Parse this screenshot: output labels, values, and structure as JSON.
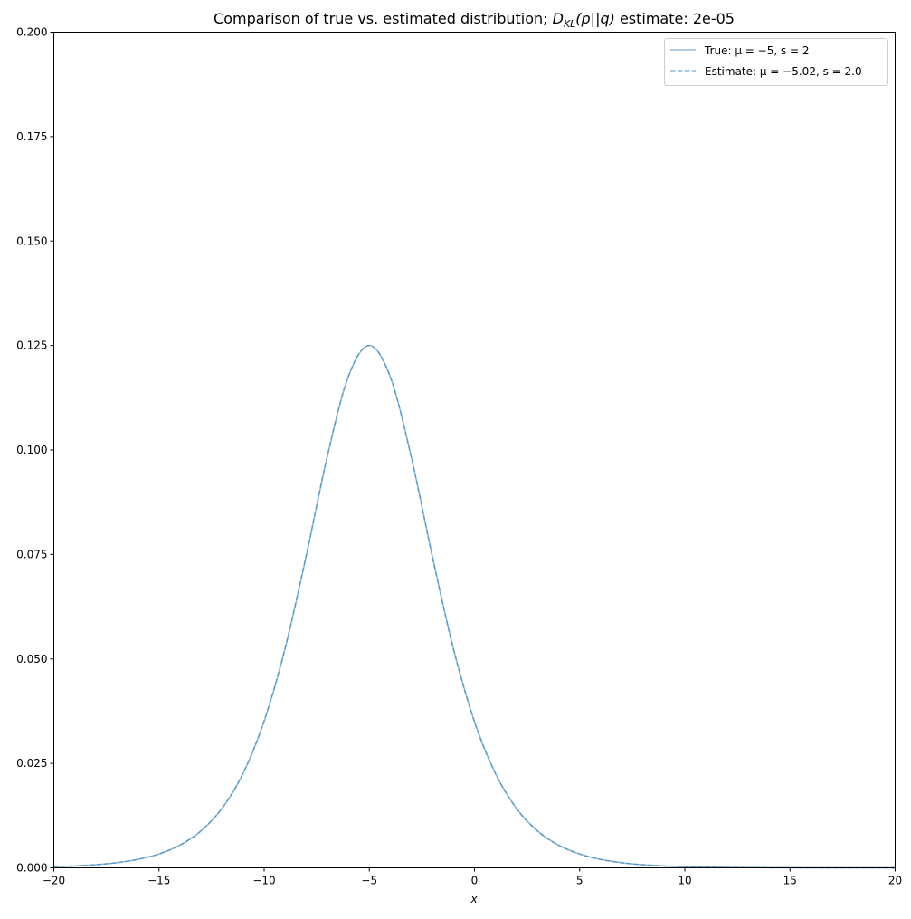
{
  "chart_data": {
    "type": "line",
    "title": "Comparison of true vs. estimated distribution; D_KL(p||q) estimate: 2e-05",
    "title_parts": {
      "prefix": "Comparison of true vs. estimated distribution; ",
      "D": "D",
      "sub": "KL",
      "args": "(p||q)",
      "suffix": " estimate: 2e-05"
    },
    "xlabel": "x",
    "ylabel": "",
    "xlim": [
      -20,
      20
    ],
    "ylim": [
      0,
      0.2
    ],
    "xticks": [
      -20,
      -15,
      -10,
      -5,
      0,
      5,
      10,
      15,
      20
    ],
    "xtick_labels": [
      "−20",
      "−15",
      "−10",
      "−5",
      "0",
      "5",
      "10",
      "15",
      "20"
    ],
    "yticks": [
      0,
      0.025,
      0.05,
      0.075,
      0.1,
      0.125,
      0.15,
      0.175,
      0.2
    ],
    "ytick_labels": [
      "0.000",
      "0.025",
      "0.050",
      "0.075",
      "0.100",
      "0.125",
      "0.150",
      "0.175",
      "0.200"
    ],
    "grid": false,
    "legend_placement": "top-right",
    "x": [
      -20,
      -19,
      -18,
      -17,
      -16,
      -15,
      -14,
      -13,
      -12,
      -11,
      -10,
      -9,
      -8,
      -7,
      -6,
      -5,
      -4,
      -3,
      -2,
      -1,
      0,
      1,
      2,
      3,
      4,
      5,
      6,
      7,
      8,
      9,
      10,
      11,
      12,
      13,
      14,
      15,
      16,
      17,
      18,
      19,
      20
    ],
    "series": [
      {
        "name": "True: μ = −5, s = 2",
        "style": "solid",
        "color": "#1f77b4",
        "alpha": 0.5,
        "values": [
          0.00028,
          0.00046,
          0.00075,
          0.00123,
          0.00203,
          0.00332,
          0.00543,
          0.00883,
          0.01423,
          0.02259,
          0.03505,
          0.0525,
          0.07457,
          0.0983,
          0.1175,
          0.125,
          0.1175,
          0.0983,
          0.07457,
          0.0525,
          0.03505,
          0.02259,
          0.01423,
          0.00883,
          0.00543,
          0.00332,
          0.00203,
          0.00123,
          0.00075,
          0.00046,
          0.00028,
          0.00017,
          0.0001,
          6e-05,
          4e-05,
          2e-05,
          1e-05,
          1e-05,
          0,
          0,
          0
        ]
      },
      {
        "name": "Estimate: μ = −5.02, s = 2.0",
        "style": "dashed",
        "color": "#1f77b4",
        "alpha": 0.5,
        "values": [
          0.00028,
          0.00046,
          0.00075,
          0.00124,
          0.00204,
          0.00334,
          0.00547,
          0.00889,
          0.01432,
          0.02271,
          0.03522,
          0.05272,
          0.07481,
          0.09849,
          0.1176,
          0.125,
          0.1174,
          0.09811,
          0.07433,
          0.05228,
          0.03488,
          0.02247,
          0.01414,
          0.00877,
          0.00539,
          0.0033,
          0.00201,
          0.00122,
          0.00074,
          0.00045,
          0.00027,
          0.00017,
          0.0001,
          6e-05,
          4e-05,
          2e-05,
          1e-05,
          1e-05,
          0,
          0,
          0
        ]
      }
    ]
  }
}
